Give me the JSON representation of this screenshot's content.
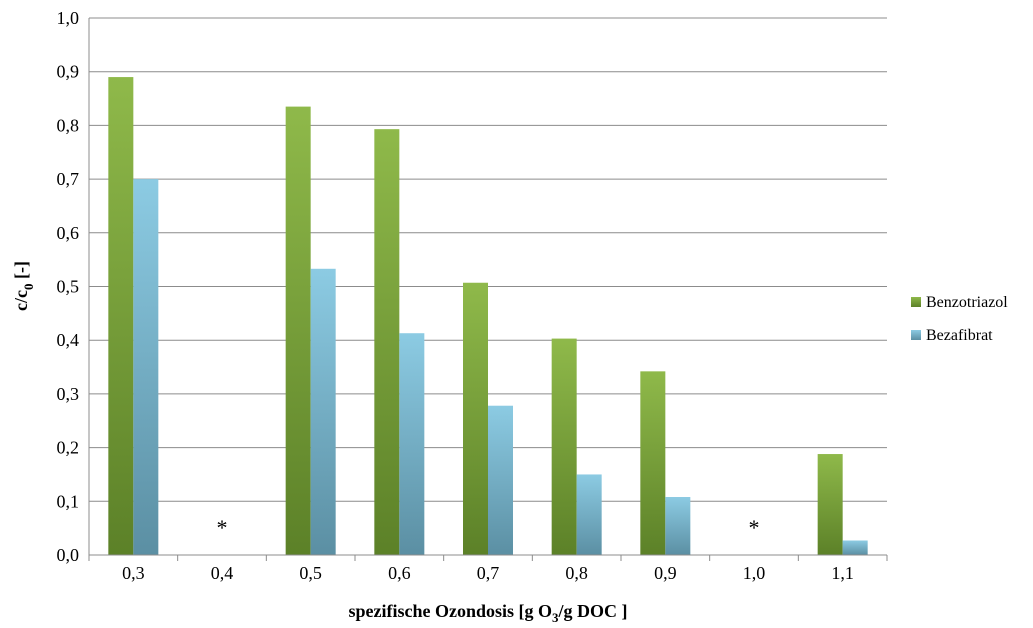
{
  "chart_data": {
    "type": "bar",
    "categories": [
      "0,3",
      "0,4",
      "0,5",
      "0,6",
      "0,7",
      "0,8",
      "0,9",
      "1,0",
      "1,1"
    ],
    "series": [
      {
        "name": "Benzotriazol",
        "color": "#7ea53a",
        "values": [
          0.89,
          null,
          0.835,
          0.793,
          0.507,
          0.403,
          0.342,
          null,
          0.188
        ]
      },
      {
        "name": "Bezafibrat",
        "color": "#6fb3cf",
        "values": [
          0.7,
          null,
          0.533,
          0.413,
          0.278,
          0.15,
          0.108,
          null,
          0.027
        ]
      }
    ],
    "missing_marker": "*",
    "ylim": [
      0,
      1.0
    ],
    "yticks": [
      "0,0",
      "0,1",
      "0,2",
      "0,3",
      "0,4",
      "0,5",
      "0,6",
      "0,7",
      "0,8",
      "0,9",
      "1,0"
    ],
    "ylabel": {
      "main": "c/c",
      "subscript": "0",
      "suffix": " [-]"
    },
    "xlabel": {
      "prefix": "spezifische Ozondosis [g O",
      "subscript": "3",
      "suffix": "/g DOC ]"
    },
    "grid": "horizontal",
    "legend_position": "right"
  }
}
